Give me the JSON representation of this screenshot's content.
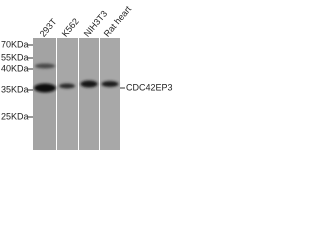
{
  "lanes": [
    "293T",
    "K562",
    "NIH3T3",
    "Rat heart"
  ],
  "markers": [
    "70KDa",
    "55KDa",
    "40KDa",
    "35KDa",
    "25KDa"
  ],
  "protein": "CDC42EP3"
}
